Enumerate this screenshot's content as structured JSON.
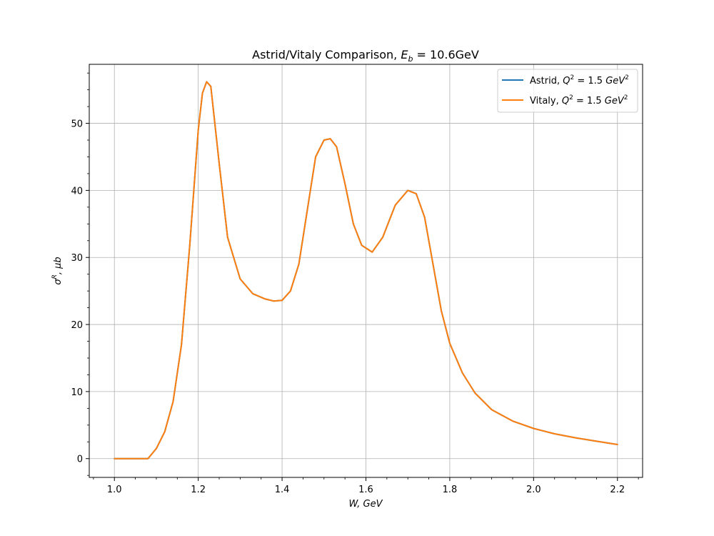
{
  "chart_data": {
    "type": "line",
    "title": "Astrid/Vitaly Comparison, E_b = 10.6GeV",
    "title_parts": {
      "prefix": "Astrid/Vitaly Comparison, ",
      "var": "E",
      "sub": "b",
      "suffix": " = 10.6GeV"
    },
    "xlabel": "W, GeV",
    "ylabel": "σ^R, μb",
    "ylabel_parts": {
      "base": "σ",
      "sup": "R",
      "rest": ", μb"
    },
    "xlim": [
      0.94,
      2.26
    ],
    "ylim": [
      -2.8,
      58.8
    ],
    "xticks": [
      1.0,
      1.2,
      1.4,
      1.6,
      1.8,
      2.0,
      2.2
    ],
    "xtick_labels": [
      "1.0",
      "1.2",
      "1.4",
      "1.6",
      "1.8",
      "2.0",
      "2.2"
    ],
    "yticks": [
      0,
      10,
      20,
      30,
      40,
      50
    ],
    "ytick_labels": [
      "0",
      "10",
      "20",
      "30",
      "40",
      "50"
    ],
    "grid": true,
    "legend_position": "top-right",
    "series": [
      {
        "name": "Astrid, Q^2 = 1.5 GeV^2",
        "name_parts": {
          "prefix": "Astrid, ",
          "var": "Q",
          "sup": "2",
          "mid": " = 1.5 ",
          "unit": "GeV",
          "unit_sup": "2"
        },
        "color": "#1f77b4",
        "x": [
          1.0,
          1.04,
          1.08,
          1.1,
          1.12,
          1.14,
          1.16,
          1.18,
          1.2,
          1.21,
          1.22,
          1.23,
          1.25,
          1.27,
          1.3,
          1.33,
          1.36,
          1.38,
          1.4,
          1.42,
          1.44,
          1.46,
          1.48,
          1.5,
          1.515,
          1.53,
          1.55,
          1.57,
          1.59,
          1.615,
          1.64,
          1.67,
          1.7,
          1.72,
          1.74,
          1.76,
          1.78,
          1.8,
          1.83,
          1.86,
          1.9,
          1.95,
          2.0,
          2.05,
          2.1,
          2.15,
          2.2
        ],
        "y": [
          0.0,
          0.0,
          0.0,
          1.5,
          4.0,
          8.5,
          17.0,
          32.0,
          49.0,
          54.5,
          56.2,
          55.5,
          44.0,
          33.0,
          26.8,
          24.6,
          23.8,
          23.5,
          23.6,
          25.0,
          29.0,
          37.0,
          45.0,
          47.5,
          47.7,
          46.5,
          41.0,
          35.0,
          31.8,
          30.8,
          33.0,
          37.8,
          40.0,
          39.5,
          36.0,
          29.0,
          22.0,
          17.2,
          12.8,
          9.8,
          7.3,
          5.6,
          4.5,
          3.7,
          3.1,
          2.6,
          2.1
        ]
      },
      {
        "name": "Vitaly, Q^2 = 1.5 GeV^2",
        "name_parts": {
          "prefix": "Vitaly, ",
          "var": "Q",
          "sup": "2",
          "mid": " = 1.5 ",
          "unit": "GeV",
          "unit_sup": "2"
        },
        "color": "#ff7f0e",
        "x": [
          1.0,
          1.04,
          1.08,
          1.1,
          1.12,
          1.14,
          1.16,
          1.18,
          1.2,
          1.21,
          1.22,
          1.23,
          1.25,
          1.27,
          1.3,
          1.33,
          1.36,
          1.38,
          1.4,
          1.42,
          1.44,
          1.46,
          1.48,
          1.5,
          1.515,
          1.53,
          1.55,
          1.57,
          1.59,
          1.615,
          1.64,
          1.67,
          1.7,
          1.72,
          1.74,
          1.76,
          1.78,
          1.8,
          1.83,
          1.86,
          1.9,
          1.95,
          2.0,
          2.05,
          2.1,
          2.15,
          2.2
        ],
        "y": [
          0.0,
          0.0,
          0.0,
          1.5,
          4.0,
          8.5,
          17.0,
          32.0,
          49.0,
          54.5,
          56.2,
          55.5,
          44.0,
          33.0,
          26.8,
          24.6,
          23.8,
          23.5,
          23.6,
          25.0,
          29.0,
          37.0,
          45.0,
          47.5,
          47.7,
          46.5,
          41.0,
          35.0,
          31.8,
          30.8,
          33.0,
          37.8,
          40.0,
          39.5,
          36.0,
          29.0,
          22.0,
          17.2,
          12.8,
          9.8,
          7.3,
          5.6,
          4.5,
          3.7,
          3.1,
          2.6,
          2.1
        ]
      }
    ]
  }
}
